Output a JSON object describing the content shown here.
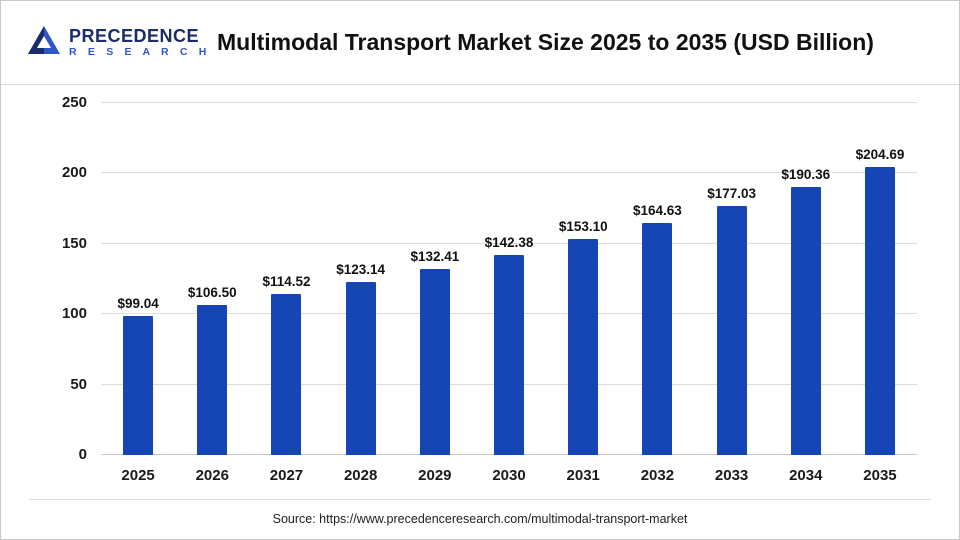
{
  "header": {
    "logo": {
      "line1": "PRECEDENCE",
      "line2": "R E S E A R C H"
    },
    "title": "Multimodal Transport Market Size 2025 to 2035 (USD Billion)"
  },
  "chart_data": {
    "type": "bar",
    "title": "Multimodal Transport Market Size 2025 to 2035 (USD Billion)",
    "categories": [
      "2025",
      "2026",
      "2027",
      "2028",
      "2029",
      "2030",
      "2031",
      "2032",
      "2033",
      "2034",
      "2035"
    ],
    "values": [
      99.04,
      106.5,
      114.52,
      123.14,
      132.41,
      142.38,
      153.1,
      164.63,
      177.03,
      190.36,
      204.69
    ],
    "value_labels": [
      "$99.04",
      "$106.50",
      "$114.52",
      "$123.14",
      "$132.41",
      "$142.38",
      "$153.10",
      "$164.63",
      "$177.03",
      "$190.36",
      "$204.69"
    ],
    "xlabel": "",
    "ylabel": "",
    "ylim": [
      0,
      250
    ],
    "yticks": [
      0,
      50,
      100,
      150,
      200,
      250
    ],
    "grid": "horizontal",
    "legend": "none",
    "bar_color": "#1646b4"
  },
  "footer": {
    "source": "Source: https://www.precedenceresearch.com/multimodal-transport-market"
  }
}
